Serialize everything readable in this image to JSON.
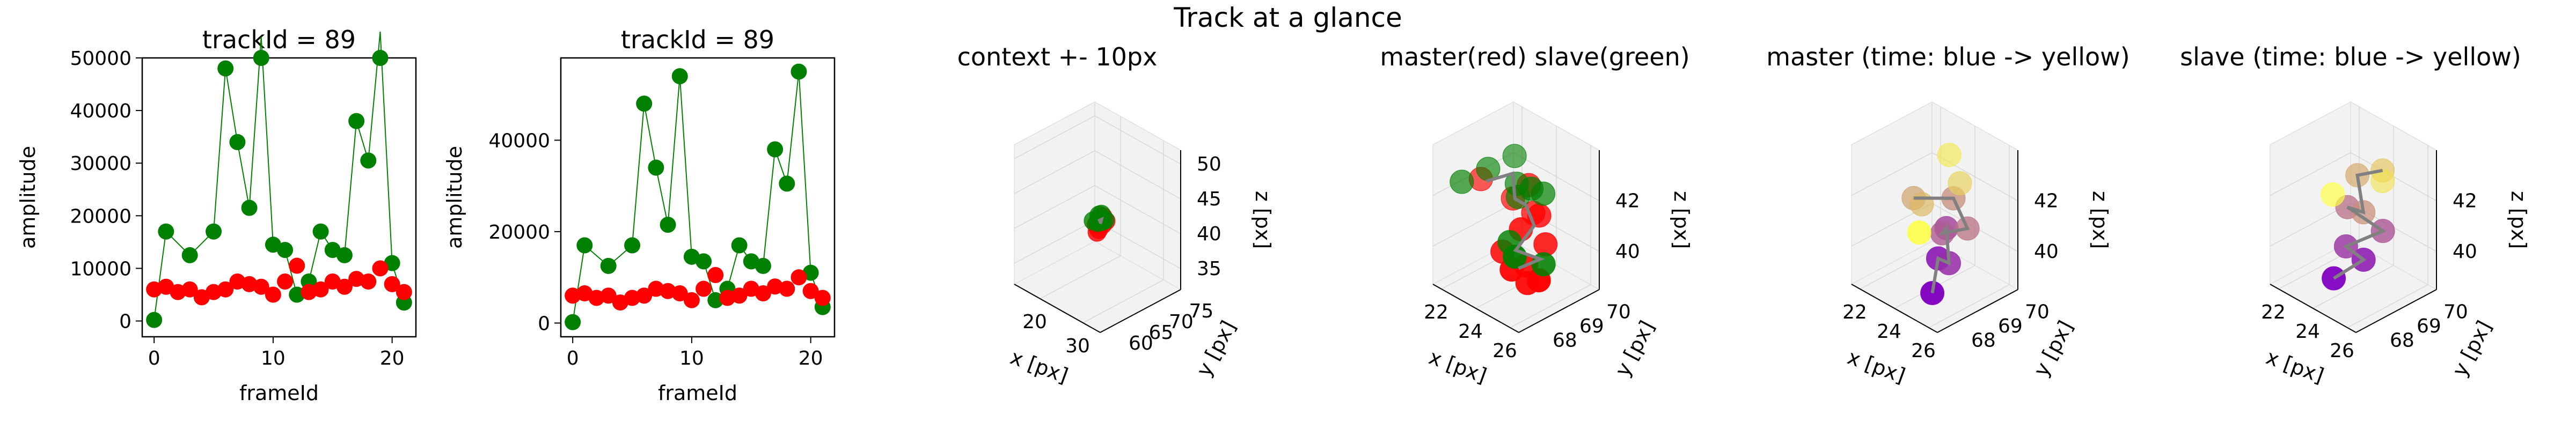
{
  "figure": {
    "suptitle": "Track at a glance"
  },
  "colors": {
    "master": "#ff0000",
    "slave": "#008000",
    "link": "#808080",
    "time_start": "#8000c0",
    "time_end": "#ffff40"
  },
  "chart_data": [
    {
      "type": "scatter",
      "title": "trackId = 89",
      "xlabel": "frameId",
      "ylabel": "amplitude",
      "xlim": [
        -1,
        22
      ],
      "ylim": [
        -3000,
        50000
      ],
      "yticks": [
        0,
        10000,
        20000,
        30000,
        40000,
        50000
      ],
      "xticks": [
        0,
        10,
        20
      ],
      "series": [
        {
          "color": "#008000",
          "connected": true,
          "x": [
            0,
            1,
            3,
            5,
            6,
            7,
            8,
            9,
            10,
            11,
            12,
            13,
            14,
            15,
            16,
            17,
            18,
            19,
            20,
            21
          ],
          "y": [
            200,
            17000,
            12500,
            17000,
            48000,
            34000,
            21500,
            54000,
            14500,
            13500,
            5000,
            7500,
            17000,
            13500,
            12500,
            38000,
            30500,
            55000,
            11000,
            3500
          ]
        },
        {
          "color": "#ff0000",
          "connected": false,
          "x": [
            0,
            1,
            2,
            3,
            4,
            5,
            6,
            7,
            8,
            9,
            10,
            11,
            12,
            13,
            14,
            15,
            16,
            17,
            18,
            19,
            20,
            21
          ],
          "y": [
            6000,
            6500,
            5500,
            6000,
            4500,
            5500,
            6000,
            7500,
            7000,
            6500,
            5000,
            7500,
            10500,
            5500,
            6000,
            7500,
            6500,
            8000,
            7500,
            10000,
            7000,
            5500
          ]
        }
      ]
    },
    {
      "type": "scatter",
      "title": "trackId = 89",
      "xlabel": "frameId",
      "ylabel": "amplitude",
      "xlim": [
        -1,
        22
      ],
      "ylim": [
        -3000,
        58000
      ],
      "yticks": [
        0,
        20000,
        40000
      ],
      "xticks": [
        0,
        10,
        20
      ],
      "series": [
        {
          "color": "#008000",
          "connected": true,
          "x": [
            0,
            1,
            3,
            5,
            6,
            7,
            8,
            9,
            10,
            11,
            12,
            13,
            14,
            15,
            16,
            17,
            18,
            19,
            20,
            21
          ],
          "y": [
            200,
            17000,
            12500,
            17000,
            48000,
            34000,
            21500,
            54000,
            14500,
            13500,
            5000,
            7500,
            17000,
            13500,
            12500,
            38000,
            30500,
            55000,
            11000,
            3500
          ]
        },
        {
          "color": "#ff0000",
          "connected": false,
          "x": [
            0,
            1,
            2,
            3,
            4,
            5,
            6,
            7,
            8,
            9,
            10,
            11,
            12,
            13,
            14,
            15,
            16,
            17,
            18,
            19,
            20,
            21
          ],
          "y": [
            6000,
            6500,
            5500,
            6000,
            4500,
            5500,
            6000,
            7500,
            7000,
            6500,
            5000,
            7500,
            10500,
            5500,
            6000,
            7500,
            6500,
            8000,
            7500,
            10000,
            7000,
            5500
          ]
        }
      ]
    },
    {
      "type": "scatter",
      "projection": "3d",
      "title": "context +- 10px",
      "xlabel": "x [px]",
      "ylabel": "y [px]",
      "zlabel": "z [px]",
      "xlim": [
        14,
        34
      ],
      "ylim": [
        58,
        78
      ],
      "zlim": [
        32,
        52
      ],
      "xticks": [
        20,
        30
      ],
      "yticks": [
        60,
        65,
        70,
        75
      ],
      "zticks": [
        35,
        40,
        45,
        50
      ],
      "series": [
        {
          "color": "#ff0000",
          "x": [
            23.2,
            23.8,
            24.1,
            23.6,
            24.4,
            23.9,
            24.6
          ],
          "y": [
            68.5,
            69.2,
            68.2,
            69.8,
            68.9,
            68.0,
            69.5
          ],
          "z": [
            40.5,
            41.0,
            40.2,
            41.4,
            40.8,
            39.8,
            41.2
          ]
        },
        {
          "color": "#008000",
          "x": [
            22.8,
            23.5,
            24.2,
            23.1,
            24.5,
            23.7,
            24.0,
            22.9
          ],
          "y": [
            68.2,
            69.5,
            68.8,
            69.0,
            68.4,
            68.7,
            69.9,
            69.4
          ],
          "z": [
            41.0,
            41.8,
            41.2,
            40.6,
            41.5,
            42.0,
            41.0,
            40.8
          ]
        },
        {
          "color": "#808080",
          "x": [
            23.4,
            23.9,
            24.1,
            23.6
          ],
          "y": [
            68.8,
            69.1,
            68.6,
            69.3
          ],
          "z": [
            41.0,
            41.3,
            40.9,
            41.1
          ]
        }
      ]
    },
    {
      "type": "scatter",
      "projection": "3d",
      "title": "master(red) slave(green)",
      "xlabel": "x [px]",
      "ylabel": "y [px]",
      "zlabel": "z [px]",
      "xlim": [
        21.5,
        26.5
      ],
      "ylim": [
        67.5,
        70.5
      ],
      "zlim": [
        38.5,
        44.0
      ],
      "xticks": [
        22,
        24,
        26
      ],
      "yticks": [
        68,
        69,
        70
      ],
      "zticks": [
        40,
        42
      ],
      "series": [
        {
          "name": "master(red)",
          "color": "#ff0000",
          "x": [
            23.2,
            24.6,
            25.0,
            23.8,
            24.3,
            25.4,
            23.5,
            24.9,
            24.1,
            25.6,
            23.9,
            24.7
          ],
          "y": [
            68.2,
            68.5,
            69.0,
            69.6,
            68.3,
            69.2,
            69.5,
            68.8,
            69.8,
            68.4,
            68.9,
            69.4
          ],
          "z": [
            42.9,
            42.5,
            41.8,
            42.1,
            40.4,
            40.6,
            40.3,
            39.8,
            40.9,
            39.6,
            39.2,
            38.8
          ]
        },
        {
          "name": "slave(green)",
          "color": "#008000",
          "x": [
            22.4,
            23.0,
            23.6,
            24.2,
            24.8,
            25.2,
            23.8,
            24.4,
            25.6,
            23.3
          ],
          "y": [
            68.0,
            68.6,
            69.2,
            68.9,
            69.5,
            68.3,
            69.7,
            68.5,
            69.0,
            69.4
          ],
          "z": [
            42.6,
            43.0,
            43.4,
            42.7,
            42.2,
            42.9,
            41.9,
            40.7,
            40.0,
            39.2
          ]
        },
        {
          "color": "#808080",
          "x": [
            23.2,
            23.8,
            24.4,
            24.1,
            24.9,
            24.6,
            25.1,
            24.3
          ],
          "y": [
            68.4,
            69.0,
            68.7,
            69.3,
            69.1,
            68.6,
            69.2,
            68.9
          ],
          "z": [
            42.7,
            42.9,
            42.3,
            41.6,
            41.2,
            40.4,
            39.9,
            39.4
          ]
        }
      ]
    },
    {
      "type": "scatter",
      "projection": "3d",
      "title": "master (time: blue -> yellow)",
      "xlabel": "x [px]",
      "ylabel": "y [px]",
      "zlabel": "z [px]",
      "xlim": [
        21.5,
        26.5
      ],
      "ylim": [
        67.5,
        70.5
      ],
      "zlim": [
        38.5,
        44.0
      ],
      "xticks": [
        22,
        24,
        26
      ],
      "yticks": [
        68,
        69,
        70
      ],
      "zticks": [
        40,
        42
      ],
      "series": [
        {
          "color_by": "time",
          "colors": [
            "#8000c0",
            "#ffff40"
          ],
          "x": [
            24.8,
            24.2,
            25.3,
            23.9,
            24.6,
            25.6,
            24.0,
            23.4,
            24.5,
            25.0,
            23.6,
            23.1
          ],
          "y": [
            68.4,
            69.0,
            68.7,
            69.5,
            68.9,
            69.2,
            69.7,
            68.6,
            68.2,
            69.3,
            69.8,
            69.0
          ],
          "z": [
            38.9,
            39.7,
            40.1,
            40.5,
            40.9,
            41.3,
            41.6,
            42.0,
            42.4,
            42.8,
            43.1,
            40.3
          ]
        },
        {
          "color": "#808080",
          "x": [
            24.8,
            24.2,
            25.3,
            23.9,
            24.6,
            25.6,
            24.0,
            23.4
          ],
          "y": [
            68.4,
            69.0,
            68.7,
            69.5,
            68.9,
            69.2,
            69.7,
            68.6
          ],
          "z": [
            38.9,
            39.7,
            40.1,
            40.5,
            40.9,
            41.3,
            41.6,
            42.0
          ]
        }
      ]
    },
    {
      "type": "scatter",
      "projection": "3d",
      "title": "slave (time: blue -> yellow)",
      "xlabel": "x [px]",
      "ylabel": "y [px]",
      "zlabel": "z [px]",
      "xlim": [
        21.5,
        26.5
      ],
      "ylim": [
        67.5,
        70.5
      ],
      "zlim": [
        38.5,
        44.0
      ],
      "xticks": [
        22,
        24,
        26
      ],
      "yticks": [
        68,
        69,
        70
      ],
      "zticks": [
        40,
        42
      ],
      "series": [
        {
          "color_by": "time",
          "colors": [
            "#8000c0",
            "#ffff40"
          ],
          "x": [
            23.8,
            24.6,
            24.2,
            25.1,
            23.5,
            24.9,
            23.3,
            24.3,
            25.4,
            23.9
          ],
          "y": [
            68.4,
            69.0,
            68.6,
            69.4,
            69.1,
            68.8,
            69.6,
            69.9,
            69.2,
            68.3
          ],
          "z": [
            39.1,
            39.8,
            40.4,
            40.9,
            41.4,
            41.9,
            42.3,
            42.7,
            43.1,
            42.5
          ]
        },
        {
          "color": "#808080",
          "x": [
            23.8,
            24.6,
            24.2,
            25.1,
            23.5,
            24.9,
            23.3,
            24.3
          ],
          "y": [
            68.4,
            69.0,
            68.6,
            69.4,
            69.1,
            68.8,
            69.6,
            69.9
          ],
          "z": [
            39.1,
            39.8,
            40.4,
            40.9,
            41.4,
            41.9,
            42.3,
            42.7
          ]
        }
      ]
    }
  ]
}
